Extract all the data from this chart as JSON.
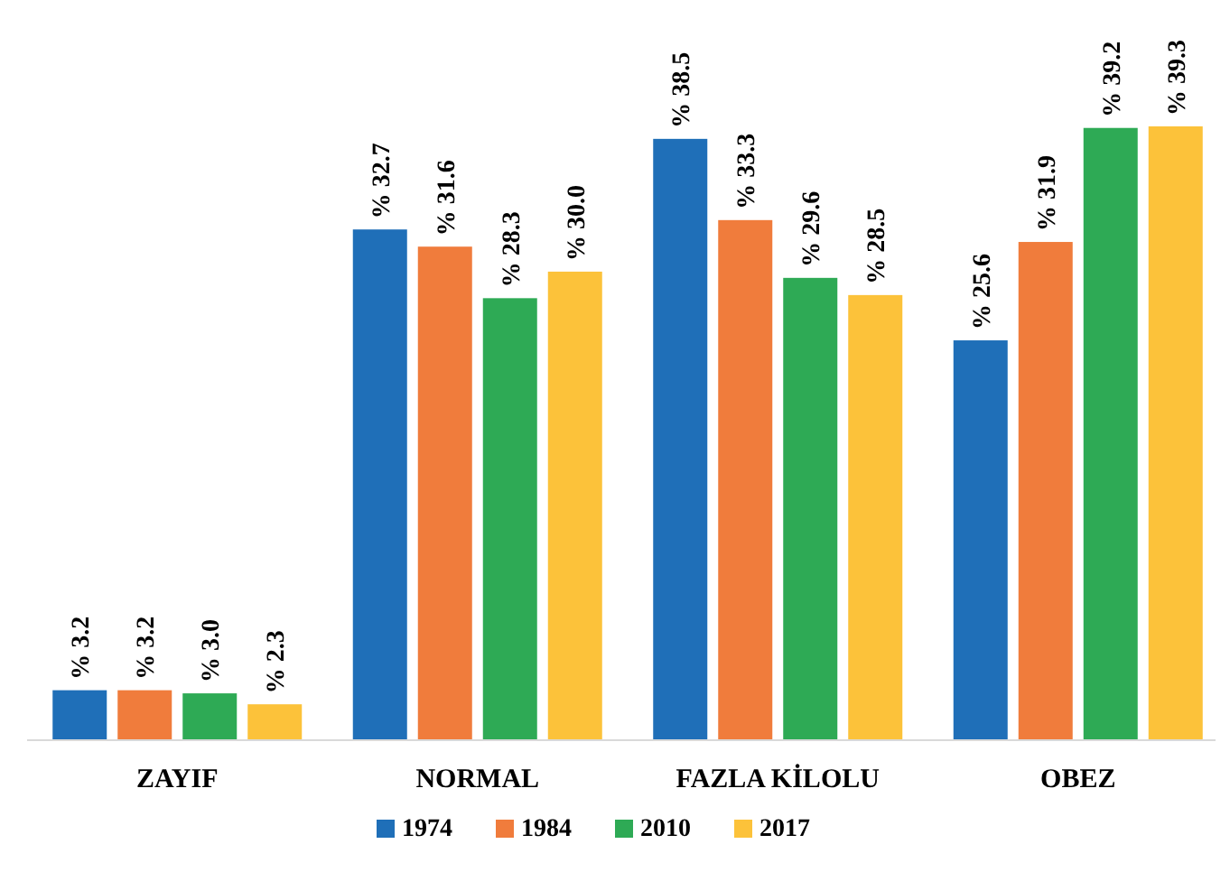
{
  "chart_data": {
    "type": "bar",
    "categories": [
      "ZAYIF",
      "NORMAL",
      "FAZLA KİLOLU",
      "OBEZ"
    ],
    "series": [
      {
        "name": "1974",
        "color": "#1f6fb8",
        "values": [
          3.2,
          32.7,
          38.5,
          25.6
        ],
        "value_labels": [
          "% 3.2",
          "% 32.7",
          "% 38.5",
          "% 25.6"
        ]
      },
      {
        "name": "1984",
        "color": "#f07c3c",
        "values": [
          3.2,
          31.6,
          33.3,
          31.9
        ],
        "value_labels": [
          "% 3.2",
          "% 31.6",
          "% 33.3",
          "% 31.9"
        ]
      },
      {
        "name": "2010",
        "color": "#2eaa55",
        "values": [
          3.0,
          28.3,
          29.6,
          39.2
        ],
        "value_labels": [
          "% 3.0",
          "% 28.3",
          "% 29.6",
          "% 39.2"
        ]
      },
      {
        "name": "2017",
        "color": "#fcc23a",
        "values": [
          2.3,
          30.0,
          28.5,
          39.3
        ],
        "value_labels": [
          "% 2.3",
          "% 30.0",
          "% 28.5",
          "% 39.3"
        ]
      }
    ],
    "legend": "bottom"
  }
}
